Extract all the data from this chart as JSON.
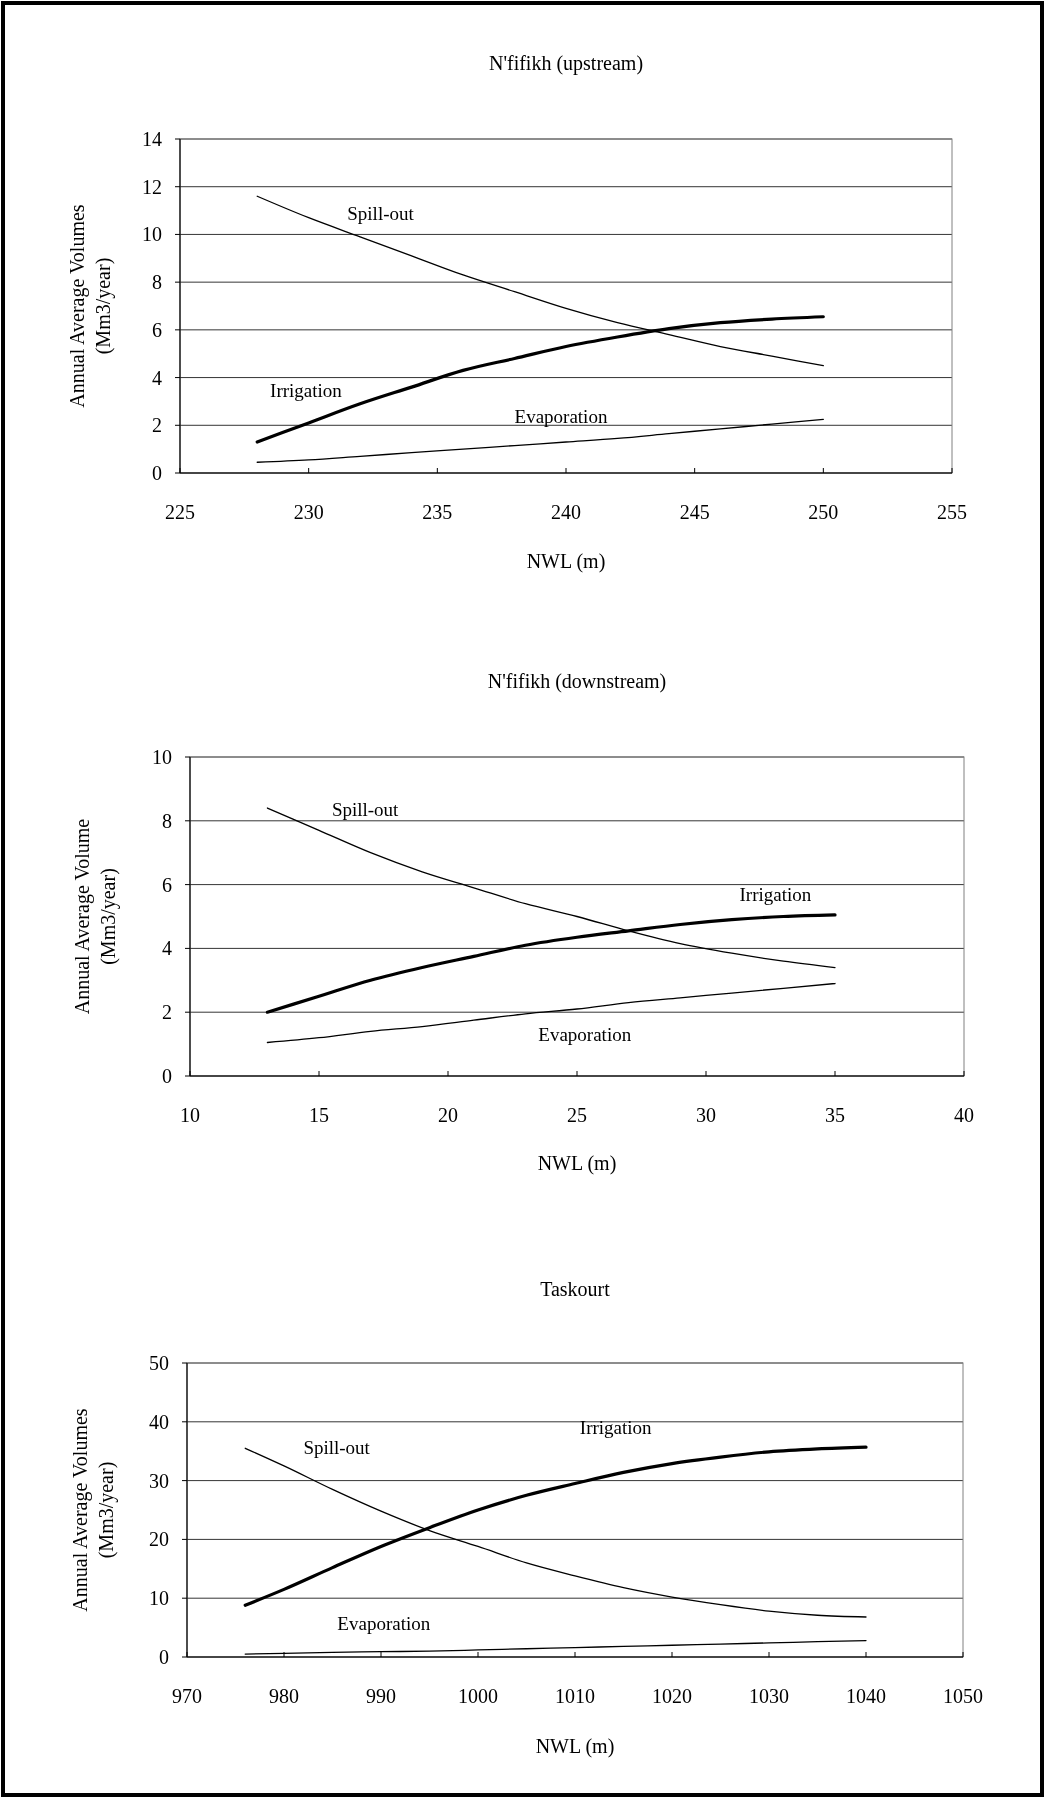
{
  "chart_data": [
    {
      "type": "line",
      "title": "N'fifikh (upstream)",
      "xlabel": "NWL (m)",
      "ylabel": "Annual Average Volumes (Mm3/year)",
      "xlim": [
        225,
        255
      ],
      "xticks": [
        225,
        230,
        235,
        240,
        245,
        250,
        255
      ],
      "ylim": [
        0,
        14
      ],
      "yticks": [
        0,
        2,
        4,
        6,
        8,
        10,
        12,
        14
      ],
      "grid": "y",
      "marker": "none",
      "x": [
        228,
        230,
        232,
        234,
        236,
        238,
        240,
        242,
        244,
        246,
        248,
        250
      ],
      "series": [
        {
          "name": "Spill-out",
          "color": "#000000",
          "values": [
            11.6,
            10.7,
            9.9,
            9.1,
            8.3,
            7.6,
            6.9,
            6.3,
            5.8,
            5.3,
            4.9,
            4.5
          ]
        },
        {
          "name": "Irrigation",
          "color": "#000000",
          "values": [
            1.3,
            2.1,
            2.9,
            3.6,
            4.3,
            4.8,
            5.3,
            5.7,
            6.05,
            6.3,
            6.45,
            6.55
          ]
        },
        {
          "name": "Evaporation",
          "color": "#000000",
          "values": [
            0.45,
            0.55,
            0.7,
            0.85,
            1.0,
            1.15,
            1.3,
            1.45,
            1.65,
            1.85,
            2.05,
            2.25
          ]
        }
      ]
    },
    {
      "type": "line",
      "title": "N'fifikh (downstream)",
      "xlabel": "NWL (m)",
      "ylabel": "Annual Average Volume (Mm3/year)",
      "xlim": [
        10,
        40
      ],
      "xticks": [
        10,
        15,
        20,
        25,
        30,
        35,
        40
      ],
      "ylim": [
        0,
        10
      ],
      "yticks": [
        0,
        2,
        4,
        6,
        8,
        10
      ],
      "grid": "y",
      "marker": "none",
      "x": [
        13,
        15,
        17,
        19,
        21,
        23,
        25,
        27,
        29,
        31,
        33,
        35
      ],
      "series": [
        {
          "name": "Spill-out",
          "color": "#000000",
          "values": [
            8.4,
            7.7,
            7.0,
            6.4,
            5.9,
            5.4,
            5.0,
            4.55,
            4.15,
            3.85,
            3.6,
            3.4
          ]
        },
        {
          "name": "Irrigation",
          "color": "#000000",
          "values": [
            2.0,
            2.5,
            3.0,
            3.4,
            3.75,
            4.1,
            4.35,
            4.55,
            4.75,
            4.9,
            5.0,
            5.05
          ]
        },
        {
          "name": "Evaporation",
          "color": "#000000",
          "values": [
            1.05,
            1.2,
            1.4,
            1.55,
            1.75,
            1.95,
            2.1,
            2.3,
            2.45,
            2.6,
            2.75,
            2.9
          ]
        }
      ]
    },
    {
      "type": "line",
      "title": "Taskourt",
      "xlabel": "NWL (m)",
      "ylabel": "Annual Average Volumes (Mm3/year)",
      "xlim": [
        970,
        1050
      ],
      "xticks": [
        970,
        980,
        990,
        1000,
        1010,
        1020,
        1030,
        1040,
        1050
      ],
      "ylim": [
        0,
        50
      ],
      "yticks": [
        0,
        10,
        20,
        30,
        40,
        50
      ],
      "grid": "y",
      "marker": "none",
      "x": [
        976,
        980,
        985,
        990,
        995,
        1000,
        1005,
        1010,
        1015,
        1020,
        1025,
        1030,
        1035,
        1040
      ],
      "series": [
        {
          "name": "Spill-out",
          "color": "#000000",
          "values": [
            35.5,
            32.5,
            28.5,
            24.8,
            21.5,
            18.8,
            16.0,
            13.8,
            11.8,
            10.2,
            8.9,
            7.8,
            7.1,
            6.8
          ]
        },
        {
          "name": "Irrigation",
          "color": "#000000",
          "values": [
            8.8,
            11.5,
            15.2,
            18.8,
            22.0,
            25.0,
            27.5,
            29.5,
            31.4,
            32.9,
            34.0,
            34.9,
            35.4,
            35.7
          ]
        },
        {
          "name": "Evaporation",
          "color": "#000000",
          "values": [
            0.5,
            0.6,
            0.8,
            0.9,
            1.0,
            1.2,
            1.4,
            1.6,
            1.8,
            2.0,
            2.2,
            2.4,
            2.6,
            2.8
          ]
        }
      ]
    }
  ]
}
